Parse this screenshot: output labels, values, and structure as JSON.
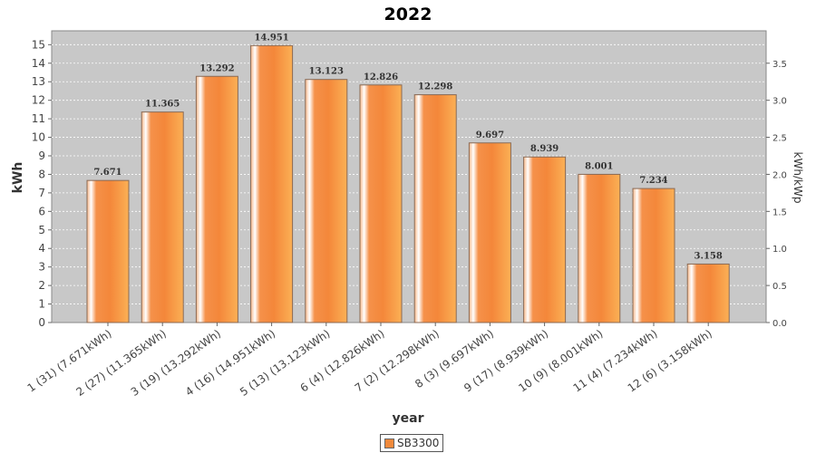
{
  "chart_data": {
    "type": "bar",
    "title": "2022",
    "xlabel": "year",
    "ylabel": "kWh",
    "y2label": "kWh/kWp",
    "ylim": [
      0,
      15.75
    ],
    "y_ticks": [
      0,
      1,
      2,
      3,
      4,
      5,
      6,
      7,
      8,
      9,
      10,
      11,
      12,
      13,
      14,
      15
    ],
    "y2lim": [
      0,
      3.9375
    ],
    "y2_ticks": [
      "0.0",
      "0.5",
      "1.0",
      "1.5",
      "2.0",
      "2.5",
      "3.0",
      "3.5"
    ],
    "grid": true,
    "legend_position": "bottom",
    "categories": [
      "1 (31)  (7.671kWh)",
      "2 (27)  (11.365kWh)",
      "3 (19)  (13.292kWh)",
      "4 (16)  (14.951kWh)",
      "5 (13)  (13.123kWh)",
      "6 (4)  (12.826kWh)",
      "7 (2)  (12.298kWh)",
      "8 (3)  (9.697kWh)",
      "9 (17)  (8.939kWh)",
      "10 (9)  (8.001kWh)",
      "11 (4)  (7.234kWh)",
      "12 (6)  (3.158kWh)"
    ],
    "series": [
      {
        "name": "SB3300",
        "color": "#f08a3c",
        "values": [
          7.671,
          11.365,
          13.292,
          14.951,
          13.123,
          12.826,
          12.298,
          9.697,
          8.939,
          8.001,
          7.234,
          3.158
        ],
        "labels": [
          "7.671",
          "11.365",
          "13.292",
          "14.951",
          "13.123",
          "12.826",
          "12.298",
          "9.697",
          "8.939",
          "8.001",
          "7.234",
          "3.158"
        ]
      }
    ]
  }
}
